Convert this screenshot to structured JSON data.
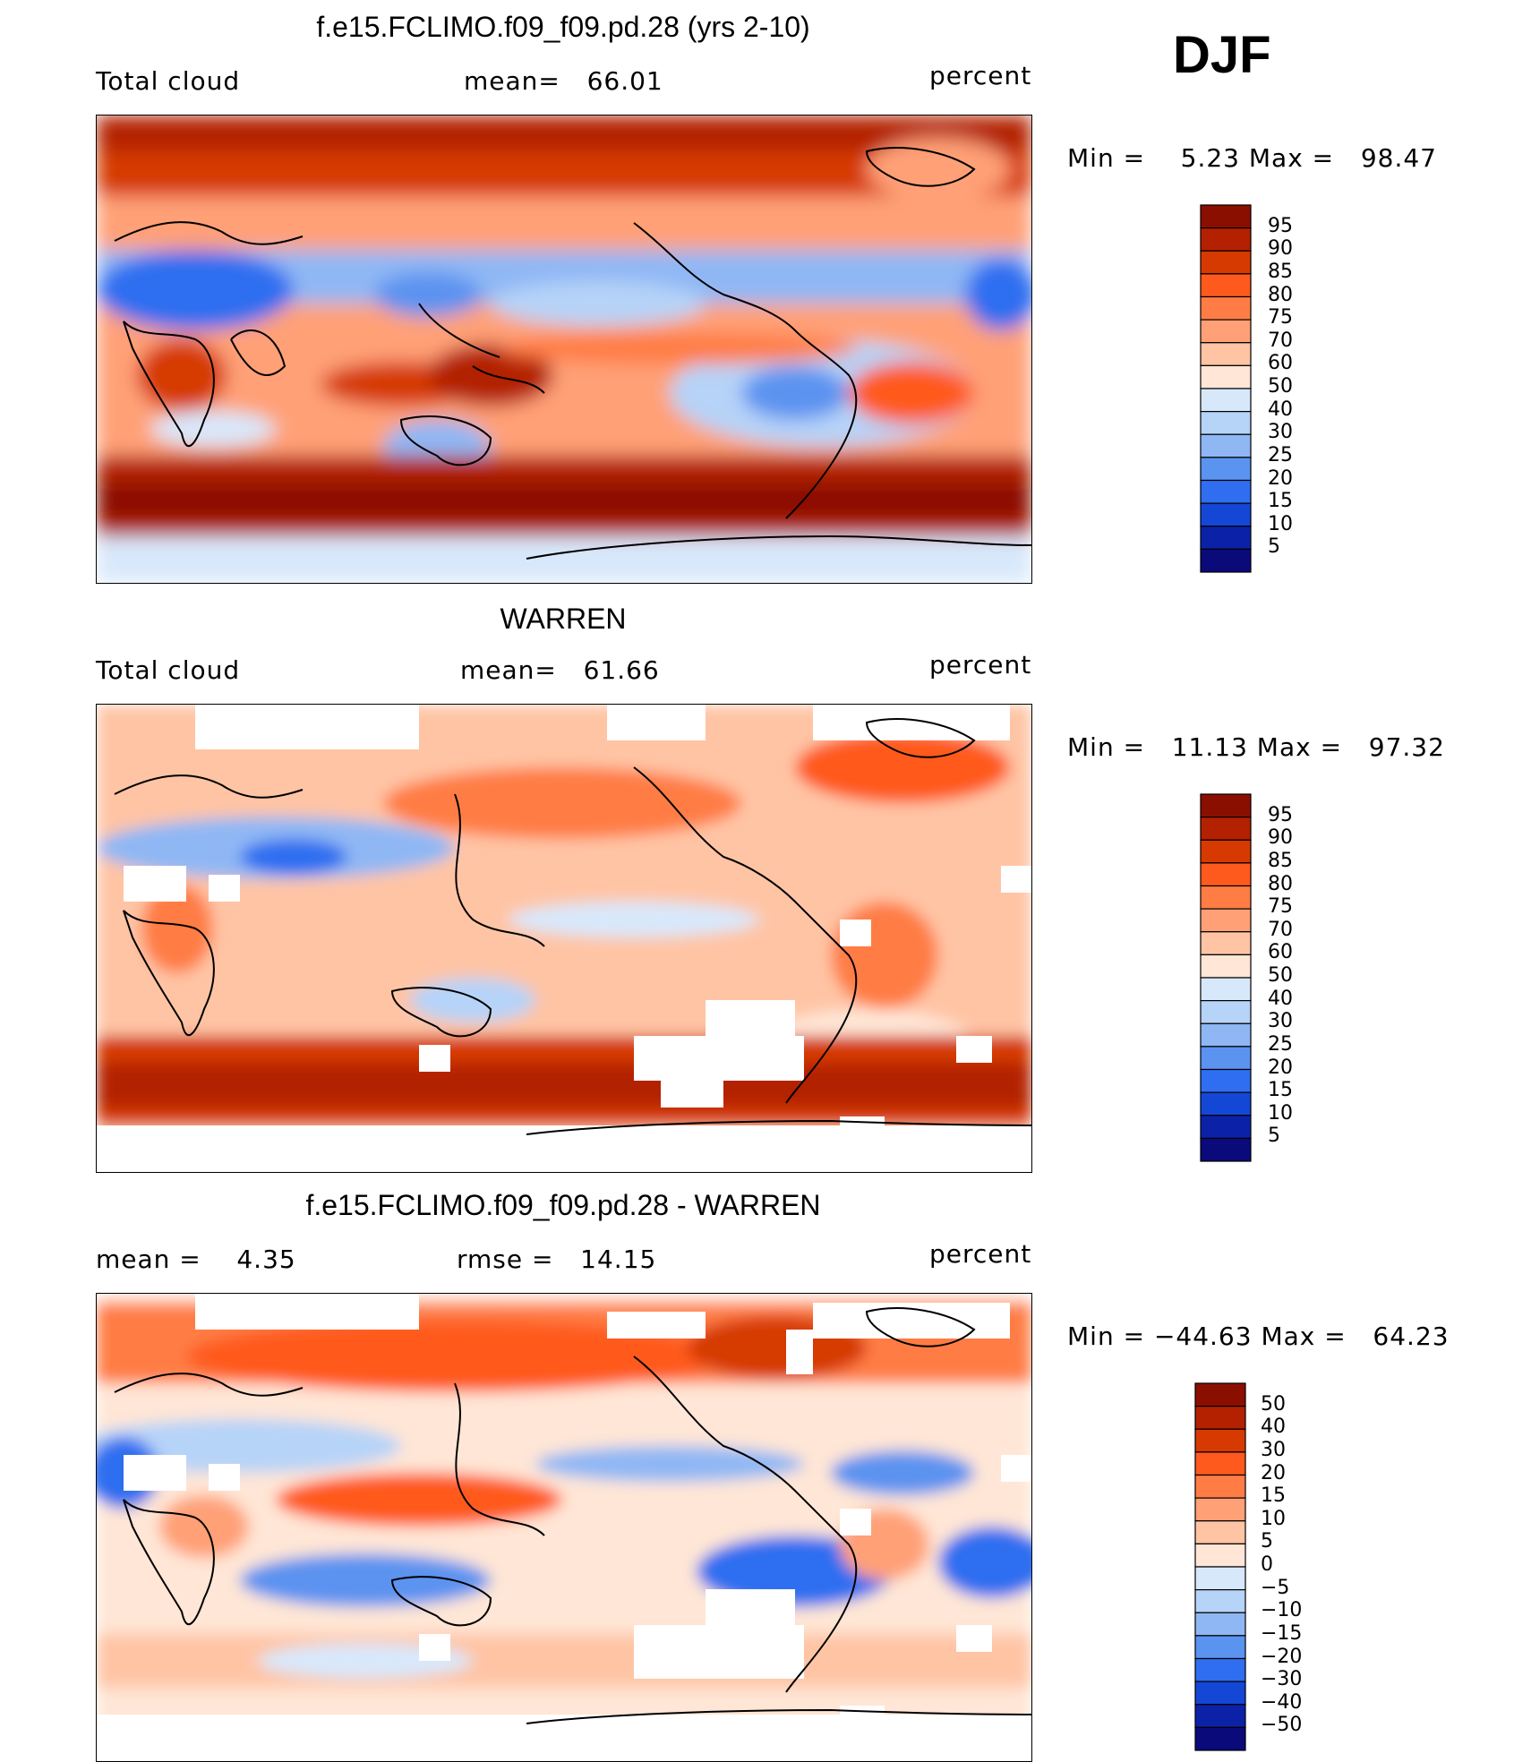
{
  "season": "DJF",
  "panels": [
    {
      "title": "f.e15.FCLIMO.f09_f09.pd.28 (yrs 2-10)",
      "left_label": "Total cloud",
      "center_label": "mean=   66.01",
      "right_label": "percent",
      "minmax": "Min =    5.23 Max =   98.47",
      "colorbar_ticks": [
        "95",
        "90",
        "85",
        "80",
        "75",
        "70",
        "60",
        "50",
        "40",
        "30",
        "25",
        "20",
        "15",
        "10",
        "5"
      ]
    },
    {
      "title": "WARREN",
      "left_label": "Total cloud",
      "center_label": "mean=   61.66",
      "right_label": "percent",
      "minmax": "Min =   11.13 Max =   97.32",
      "colorbar_ticks": [
        "95",
        "90",
        "85",
        "80",
        "75",
        "70",
        "60",
        "50",
        "40",
        "30",
        "25",
        "20",
        "15",
        "10",
        "5"
      ]
    },
    {
      "title": "f.e15.FCLIMO.f09_f09.pd.28 - WARREN",
      "left_label": "mean =    4.35",
      "center_label": "rmse =   14.15",
      "right_label": "percent",
      "minmax": "Min = −44.63 Max =   64.23",
      "colorbar_ticks": [
        "50",
        "40",
        "30",
        "20",
        "15",
        "10",
        "5",
        "0",
        "−5",
        "−10",
        "−15",
        "−20",
        "−30",
        "−40",
        "−50"
      ]
    }
  ],
  "colors": {
    "cloud_scale": [
      "#8b0f00",
      "#b32100",
      "#d63a00",
      "#ff5a1e",
      "#ff7d45",
      "#ffa077",
      "#ffc4a4",
      "#ffe6d6",
      "#d8e8fb",
      "#b6d3f8",
      "#8fb7f4",
      "#5b93f0",
      "#2f6ef0",
      "#1447d6",
      "#0b22a8",
      "#0a0a7a"
    ],
    "diff_scale": [
      "#8b0f00",
      "#b32100",
      "#d63a00",
      "#ff5a1e",
      "#ff7d45",
      "#ffa077",
      "#ffc4a4",
      "#ffe6d6",
      "#d8e8fb",
      "#b6d3f8",
      "#8fb7f4",
      "#5b93f0",
      "#2f6ef0",
      "#1447d6",
      "#0b22a8",
      "#0a0a7a"
    ]
  },
  "chart_data": [
    {
      "type": "heatmap",
      "title": "f.e15.FCLIMO.f09_f09.pd.28 (yrs 2-10)",
      "variable": "Total cloud",
      "units": "percent",
      "mean": 66.01,
      "min": 5.23,
      "max": 98.47,
      "levels": [
        5,
        10,
        15,
        20,
        25,
        30,
        40,
        50,
        60,
        70,
        75,
        80,
        85,
        90,
        95
      ]
    },
    {
      "type": "heatmap",
      "title": "WARREN",
      "variable": "Total cloud",
      "units": "percent",
      "mean": 61.66,
      "min": 11.13,
      "max": 97.32,
      "levels": [
        5,
        10,
        15,
        20,
        25,
        30,
        40,
        50,
        60,
        70,
        75,
        80,
        85,
        90,
        95
      ]
    },
    {
      "type": "heatmap",
      "title": "f.e15.FCLIMO.f09_f09.pd.28 - WARREN",
      "units": "percent",
      "mean": 4.35,
      "rmse": 14.15,
      "min": -44.63,
      "max": 64.23,
      "levels": [
        -50,
        -40,
        -30,
        -20,
        -15,
        -10,
        -5,
        0,
        5,
        10,
        15,
        20,
        30,
        40,
        50
      ]
    }
  ]
}
